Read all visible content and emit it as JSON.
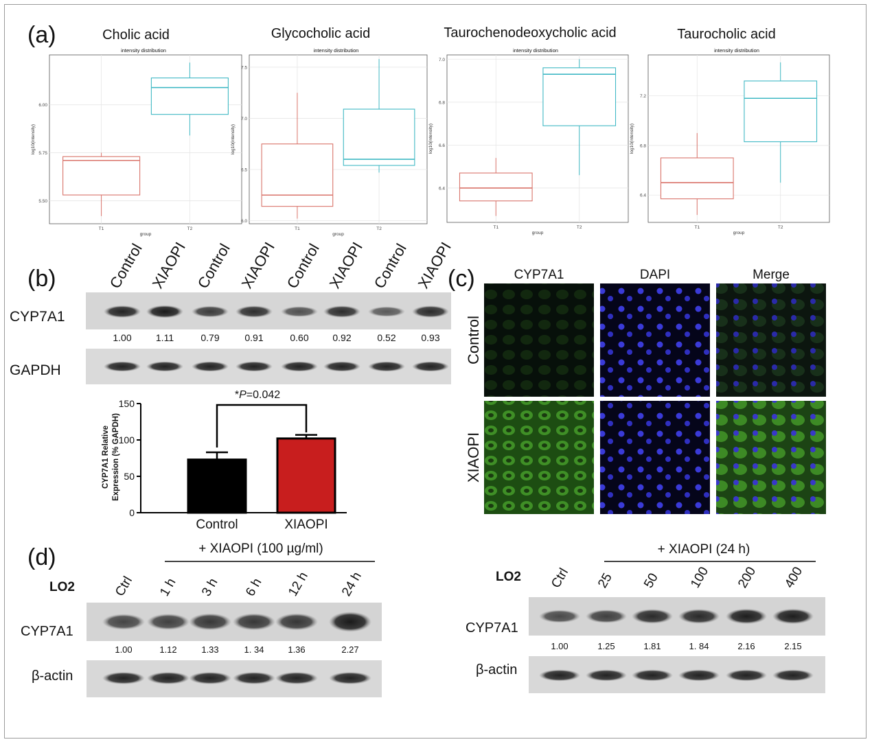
{
  "panel_a": {
    "label": "(a)",
    "plots": [
      {
        "title": "Cholic acid",
        "subtitle": "intensity distribution",
        "ylabel": "log10(intensity)",
        "xlabel": "group",
        "yticks": [
          "5.50",
          "5.75",
          "6.00"
        ]
      },
      {
        "title": "Glycocholic acid",
        "subtitle": "intensity distribution",
        "ylabel": "log10(intensity)",
        "xlabel": "group",
        "yticks": [
          "6.0",
          "6.5",
          "7.0",
          "7.5"
        ]
      },
      {
        "title": "Taurochenodeoxycholic acid",
        "subtitle": "intensity distribution",
        "ylabel": "log10(intensity)",
        "xlabel": "group",
        "yticks": [
          "6.4",
          "6.6",
          "6.8",
          "7.0"
        ]
      },
      {
        "title": "Taurocholic acid",
        "subtitle": "intensity distribution",
        "ylabel": "log10(intensity)",
        "xlabel": "group",
        "yticks": [
          "6.4",
          "6.8",
          "7.2"
        ]
      }
    ],
    "groups": [
      "T1",
      "T2"
    ]
  },
  "panel_b": {
    "label": "(b)",
    "lanes": [
      "Control",
      "XIAOPI",
      "Control",
      "XIAOPI",
      "Control",
      "XIAOPI",
      "Control",
      "XIAOPI"
    ],
    "rows": [
      "CYP7A1",
      "GAPDH"
    ],
    "densities": [
      "1.00",
      "1.11",
      "0.79",
      "0.91",
      "0.60",
      "0.92",
      "0.52",
      "0.93"
    ],
    "bar": {
      "ylabel_line1": "CYP7A1 Relative",
      "ylabel_line2": "Expression (% GAPDH)",
      "yticks": [
        "0",
        "50",
        "100",
        "150"
      ],
      "pvalue_prefix": "*",
      "pvalue_p": "P",
      "pvalue_rest": "=0.042"
    }
  },
  "panel_c": {
    "label": "(c)",
    "columns": [
      "CYP7A1",
      "DAPI",
      "Merge"
    ],
    "rows": [
      "Control",
      "XIAOPI"
    ]
  },
  "panel_d": {
    "label": "(d)",
    "left": {
      "cell": "LO2",
      "treatment": "+ XIAOPI (100 µg/ml)",
      "lanes": [
        "Ctrl",
        "1 h",
        "3 h",
        "6 h",
        "12 h",
        "24 h"
      ],
      "rows": [
        "CYP7A1",
        "β-actin"
      ],
      "densities": [
        "1.00",
        "1.12",
        "1.33",
        "1. 34",
        "1.36",
        "2.27"
      ]
    },
    "right": {
      "cell": "LO2",
      "treatment": "+ XIAOPI (24 h)",
      "lanes": [
        "Ctrl",
        "25",
        "50",
        "100",
        "200",
        "400"
      ],
      "rows": [
        "CYP7A1",
        "β-actin"
      ],
      "densities": [
        "1.00",
        "1.25",
        "1.81",
        "1. 84",
        "2.16",
        "2.15"
      ]
    }
  },
  "chart_data": [
    {
      "type": "box",
      "title": "Cholic acid",
      "subtitle": "intensity distribution",
      "xlabel": "group",
      "ylabel": "log10(intensity)",
      "categories": [
        "T1",
        "T2"
      ],
      "ylim": [
        5.38,
        6.26
      ],
      "boxes": [
        {
          "group": "T1",
          "min": 5.42,
          "q1": 5.53,
          "median": 5.71,
          "q3": 5.73,
          "max": 5.75,
          "color": "#d9736a"
        },
        {
          "group": "T2",
          "min": 5.84,
          "q1": 5.95,
          "median": 6.09,
          "q3": 6.14,
          "max": 6.22,
          "color": "#3fb8c4"
        }
      ]
    },
    {
      "type": "box",
      "title": "Glycocholic acid",
      "subtitle": "intensity distribution",
      "xlabel": "group",
      "ylabel": "log10(intensity)",
      "categories": [
        "T1",
        "T2"
      ],
      "ylim": [
        5.97,
        7.62
      ],
      "boxes": [
        {
          "group": "T1",
          "min": 6.02,
          "q1": 6.14,
          "median": 6.25,
          "q3": 6.75,
          "max": 7.25,
          "color": "#d9736a"
        },
        {
          "group": "T2",
          "min": 6.47,
          "q1": 6.54,
          "median": 6.6,
          "q3": 7.09,
          "max": 7.58,
          "color": "#3fb8c4"
        }
      ]
    },
    {
      "type": "box",
      "title": "Taurochenodeoxycholic acid",
      "subtitle": "intensity distribution",
      "xlabel": "group",
      "ylabel": "log10(intensity)",
      "categories": [
        "T1",
        "T2"
      ],
      "ylim": [
        6.24,
        7.02
      ],
      "boxes": [
        {
          "group": "T1",
          "min": 6.27,
          "q1": 6.34,
          "median": 6.4,
          "q3": 6.47,
          "max": 6.54,
          "color": "#d9736a"
        },
        {
          "group": "T2",
          "min": 6.46,
          "q1": 6.69,
          "median": 6.93,
          "q3": 6.96,
          "max": 7.0,
          "color": "#3fb8c4"
        }
      ]
    },
    {
      "type": "box",
      "title": "Taurocholic acid",
      "subtitle": "intensity distribution",
      "xlabel": "group",
      "ylabel": "log10(intensity)",
      "categories": [
        "T1",
        "T2"
      ],
      "ylim": [
        6.18,
        7.53
      ],
      "boxes": [
        {
          "group": "T1",
          "min": 6.24,
          "q1": 6.37,
          "median": 6.5,
          "q3": 6.7,
          "max": 6.9,
          "color": "#d9736a"
        },
        {
          "group": "T2",
          "min": 6.5,
          "q1": 6.83,
          "median": 7.18,
          "q3": 7.32,
          "max": 7.47,
          "color": "#3fb8c4"
        }
      ]
    },
    {
      "type": "bar",
      "categories": [
        "Control",
        "XIAOPI"
      ],
      "values": [
        73,
        102
      ],
      "errors": [
        10,
        5
      ],
      "colors": [
        "#000000",
        "#c81e1e"
      ],
      "ylabel": "CYP7A1 Relative Expression (% GAPDH)",
      "ylim": [
        0,
        150
      ],
      "annotation": "*P=0.042"
    }
  ]
}
